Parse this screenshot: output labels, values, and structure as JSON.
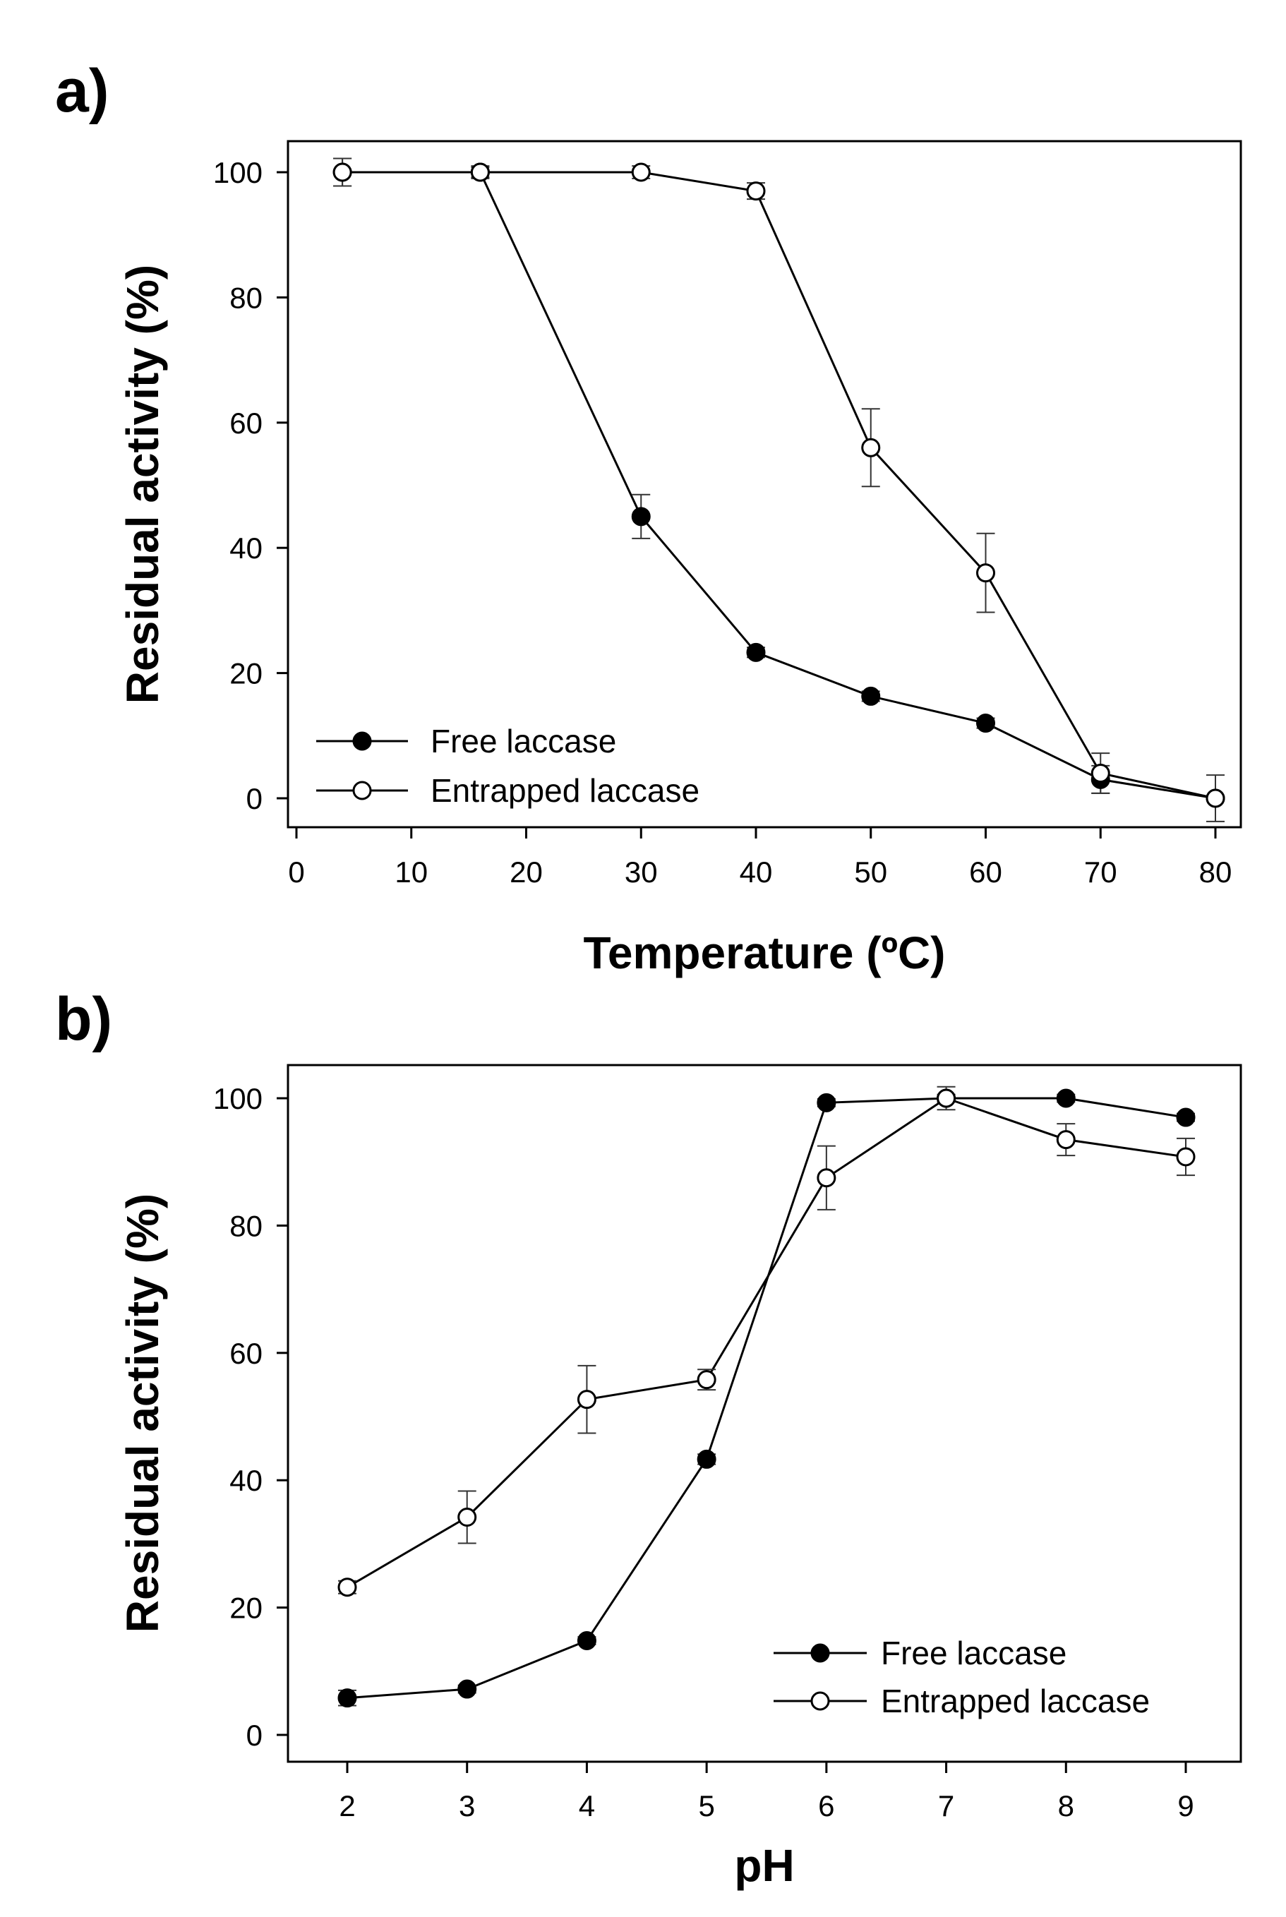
{
  "chart_data": [
    {
      "type": "line",
      "panel_label": "a)",
      "xlabel": "Temperature (ºC)",
      "ylabel": "Residual activity (%)",
      "xlim": [
        0,
        80
      ],
      "ylim": [
        0,
        100
      ],
      "x_ticks": [
        0,
        10,
        20,
        30,
        40,
        50,
        60,
        70,
        80
      ],
      "y_ticks": [
        0,
        20,
        40,
        60,
        80,
        100
      ],
      "legend_position": "bottom-left",
      "series": [
        {
          "name": "Free laccase",
          "marker": "filled-circle",
          "x": [
            4,
            16,
            30,
            40,
            50,
            60,
            70,
            80
          ],
          "y": [
            100,
            100,
            45,
            23.3,
            16.3,
            12,
            3,
            0
          ],
          "error": [
            2.2,
            0.8,
            3.5,
            0.8,
            0.8,
            0.8,
            2.2,
            0
          ]
        },
        {
          "name": "Entrapped laccase",
          "marker": "open-circle",
          "x": [
            4,
            16,
            30,
            40,
            50,
            60,
            70,
            80
          ],
          "y": [
            100,
            100,
            100,
            97,
            56,
            36,
            4,
            0
          ],
          "error": [
            2.2,
            1,
            1,
            1.3,
            6.2,
            6.3,
            3.2,
            3.7
          ]
        }
      ]
    },
    {
      "type": "line",
      "panel_label": "b)",
      "xlabel": "pH",
      "ylabel": "Residual activity (%)",
      "xlim": [
        1.5,
        9.5
      ],
      "ylim": [
        -5,
        105
      ],
      "x_ticks": [
        2,
        3,
        4,
        5,
        6,
        7,
        8,
        9
      ],
      "y_ticks": [
        0,
        20,
        40,
        60,
        80,
        100
      ],
      "legend_position": "bottom-right",
      "series": [
        {
          "name": "Free laccase",
          "marker": "filled-circle",
          "x": [
            2,
            3,
            4,
            5,
            6,
            7,
            8,
            9
          ],
          "y": [
            5.8,
            7.2,
            14.8,
            43.3,
            99.3,
            100,
            100,
            97
          ],
          "error": [
            1.2,
            0.6,
            0.6,
            0.8,
            0.6,
            0.6,
            0.6,
            0.6
          ]
        },
        {
          "name": "Entrapped laccase",
          "marker": "open-circle",
          "x": [
            2,
            3,
            4,
            5,
            6,
            7,
            8,
            9
          ],
          "y": [
            23.2,
            34.2,
            52.7,
            55.8,
            87.5,
            100,
            93.5,
            90.8
          ],
          "error": [
            1,
            4.1,
            5.3,
            1.6,
            5,
            1.8,
            2.5,
            2.9
          ]
        }
      ]
    }
  ]
}
